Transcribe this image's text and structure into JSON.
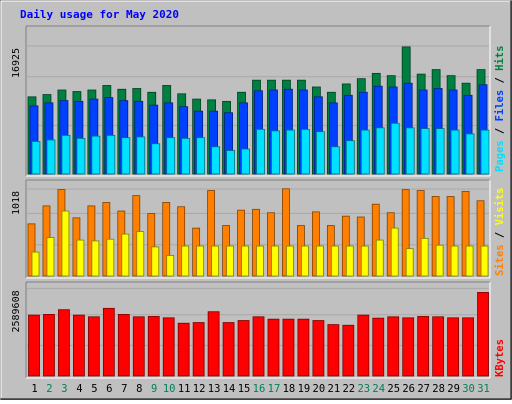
{
  "title": "Daily usage for May 2020",
  "colors": {
    "bg": "#C0C0C0",
    "title": "#0000FF",
    "hits": "#008040",
    "files": "#0040FF",
    "pages": "#00E0FF",
    "visits": "#FFFF00",
    "sites": "#FF8000",
    "kbytes": "#FF0000",
    "weekday": "#000000",
    "weekend": "#00805C"
  },
  "chart_data": [
    {
      "type": "bar",
      "categories": [
        "1",
        "2",
        "3",
        "4",
        "5",
        "6",
        "7",
        "8",
        "9",
        "10",
        "11",
        "12",
        "13",
        "14",
        "15",
        "16",
        "17",
        "18",
        "19",
        "20",
        "21",
        "22",
        "23",
        "24",
        "25",
        "26",
        "27",
        "28",
        "29",
        "30",
        "31"
      ],
      "y_tick_label": "16925",
      "y_max_value": 16925,
      "legend": [
        "Pages",
        "Files",
        "Hits"
      ],
      "series": [
        {
          "name": "Hits",
          "values": [
            10200,
            10500,
            11100,
            10900,
            11100,
            11700,
            11200,
            11300,
            10800,
            11700,
            10600,
            9900,
            9800,
            9600,
            10800,
            12400,
            12400,
            12400,
            12400,
            11500,
            10800,
            11900,
            12600,
            13300,
            13000,
            16800,
            13200,
            13800,
            13000,
            12000,
            13800
          ]
        },
        {
          "name": "Files",
          "values": [
            9000,
            9400,
            9700,
            9600,
            9900,
            10100,
            9700,
            9600,
            9100,
            9400,
            8900,
            8300,
            8300,
            8100,
            9400,
            11000,
            11100,
            11200,
            11100,
            10200,
            9400,
            10400,
            10800,
            11600,
            11500,
            12000,
            11100,
            11300,
            11100,
            10400,
            11800
          ]
        },
        {
          "name": "Pages",
          "values": [
            4300,
            4500,
            5100,
            4700,
            5000,
            5100,
            4800,
            4900,
            4000,
            4800,
            4700,
            4800,
            3600,
            3100,
            3300,
            5900,
            5700,
            5800,
            5900,
            5600,
            3600,
            4400,
            5800,
            6100,
            6700,
            6100,
            6000,
            6000,
            5800,
            5300,
            5800
          ]
        }
      ],
      "weekend_days": [
        2,
        3,
        9,
        10,
        16,
        17,
        23,
        24,
        30,
        31
      ]
    },
    {
      "type": "bar",
      "y_tick_label": "1018",
      "y_max_value": 1018,
      "legend": [
        "Sites",
        "Visits"
      ],
      "series": [
        {
          "name": "Visits",
          "values": [
            280,
            450,
            760,
            420,
            410,
            430,
            490,
            520,
            340,
            240,
            350,
            350,
            350,
            350,
            350,
            350,
            350,
            350,
            350,
            350,
            350,
            350,
            350,
            420,
            560,
            320,
            440,
            360,
            350,
            350,
            350
          ]
        },
        {
          "name": "Sites",
          "values": [
            610,
            820,
            1010,
            680,
            820,
            860,
            760,
            940,
            730,
            860,
            810,
            560,
            1000,
            590,
            770,
            780,
            740,
            1020,
            590,
            750,
            590,
            700,
            690,
            840,
            740,
            1010,
            1000,
            930,
            930,
            990,
            880
          ]
        }
      ]
    },
    {
      "type": "bar",
      "y_tick_label": "2589608",
      "y_max_value": 2589608,
      "legend": [
        "KBytes"
      ],
      "series": [
        {
          "name": "KBytes",
          "values": [
            1800000,
            1820000,
            1960000,
            1800000,
            1750000,
            2000000,
            1820000,
            1750000,
            1760000,
            1720000,
            1560000,
            1580000,
            1900000,
            1580000,
            1640000,
            1750000,
            1680000,
            1680000,
            1680000,
            1640000,
            1520000,
            1500000,
            1800000,
            1710000,
            1750000,
            1720000,
            1760000,
            1750000,
            1720000,
            1720000,
            2470000
          ]
        }
      ]
    }
  ]
}
